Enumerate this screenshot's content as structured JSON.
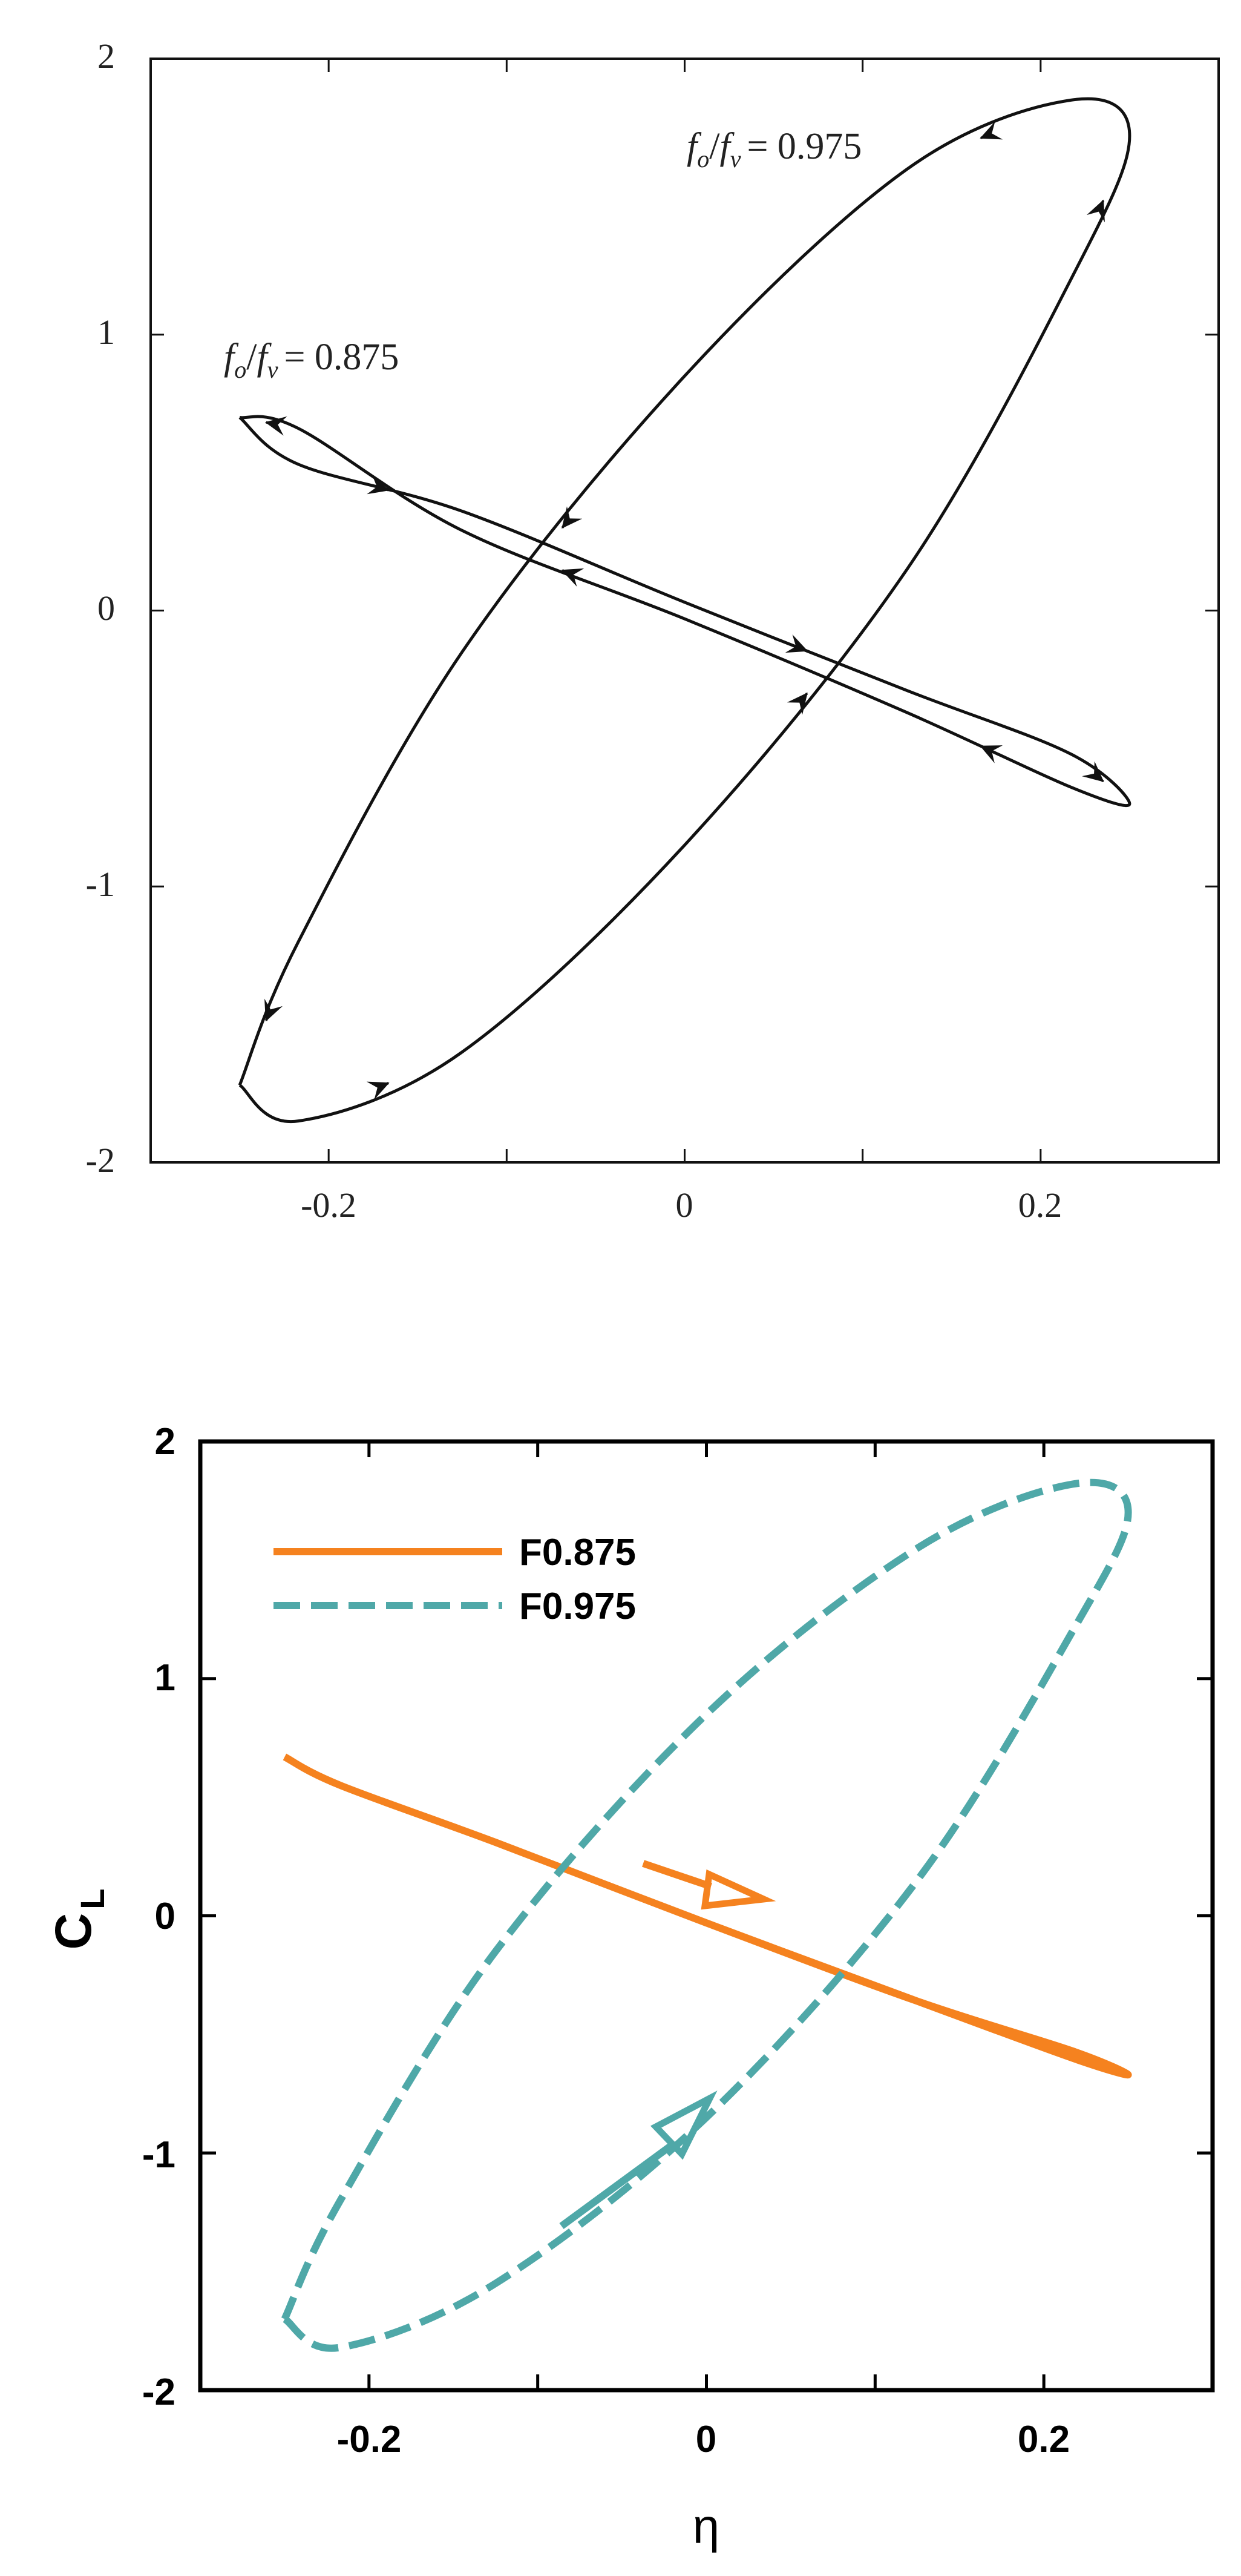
{
  "chart_data": [
    {
      "type": "line",
      "style": "black-and-white, serif, arrowheads along curves",
      "xlim": [
        -0.3,
        0.3
      ],
      "ylim": [
        -2,
        2
      ],
      "xticks": [
        "-0.2",
        "0",
        "0.2"
      ],
      "yticks": [
        "2",
        "1",
        "0",
        "-1",
        "-2"
      ],
      "xlabel": "",
      "ylabel": "",
      "series": [
        {
          "name": "f_o/f_v = 0.875",
          "label_parts": {
            "f1": "f",
            "s1": "o",
            "f2": "f",
            "s2": "v",
            "value": "= 0.875"
          },
          "color": "#111111",
          "x": [
            -0.25,
            -0.217,
            -0.125,
            0.0,
            0.125,
            0.217,
            0.25,
            0.217,
            0.125,
            0.0,
            -0.125,
            -0.217,
            -0.25
          ],
          "y": [
            0.7,
            0.53,
            0.36,
            0.03,
            -0.29,
            -0.52,
            -0.7,
            -0.64,
            -0.37,
            -0.03,
            0.29,
            0.66,
            0.7
          ]
        },
        {
          "name": "f_o/f_v = 0.975",
          "label_parts": {
            "f1": "f",
            "s1": "o",
            "f2": "f",
            "s2": "v",
            "value": "= 0.975"
          },
          "color": "#111111",
          "x": [
            -0.25,
            -0.217,
            -0.125,
            0.0,
            0.125,
            0.217,
            0.25,
            0.217,
            0.125,
            0.0,
            -0.125,
            -0.217,
            -0.25
          ],
          "y": [
            -1.72,
            -1.85,
            -1.6,
            -0.85,
            0.15,
            1.2,
            1.72,
            1.85,
            1.6,
            0.85,
            -0.15,
            -1.2,
            -1.72
          ]
        }
      ]
    },
    {
      "type": "line",
      "style": "colored, bold sans-serif, legend top-left",
      "xlim": [
        -0.3,
        0.3
      ],
      "ylim": [
        -2,
        2
      ],
      "xticks": [
        "-0.2",
        "0",
        "0.2"
      ],
      "yticks": [
        "2",
        "1",
        "0",
        "-1",
        "-2"
      ],
      "xlabel": "η",
      "ylabel_main": "C",
      "ylabel_sub": "L",
      "grid": false,
      "legend_position": "top-left",
      "series": [
        {
          "name": "F0.875",
          "color": "#F5821F",
          "dash": "solid",
          "x": [
            -0.25,
            -0.217,
            -0.125,
            0.0,
            0.125,
            0.217,
            0.25,
            0.217,
            0.125,
            0.0,
            -0.125,
            -0.217,
            -0.25
          ],
          "y": [
            0.67,
            0.55,
            0.31,
            -0.03,
            -0.36,
            -0.57,
            -0.67,
            -0.6,
            -0.36,
            -0.03,
            0.31,
            0.55,
            0.67
          ]
        },
        {
          "name": "F0.975",
          "color": "#4FA8A8",
          "dash": "dashed",
          "x": [
            -0.25,
            -0.217,
            -0.125,
            0.0,
            0.125,
            0.217,
            0.25,
            0.217,
            0.125,
            0.0,
            -0.125,
            -0.217,
            -0.25
          ],
          "y": [
            -1.7,
            -1.82,
            -1.55,
            -0.85,
            0.15,
            1.2,
            1.7,
            1.82,
            1.55,
            0.85,
            -0.15,
            -1.2,
            -1.7
          ]
        }
      ]
    }
  ]
}
